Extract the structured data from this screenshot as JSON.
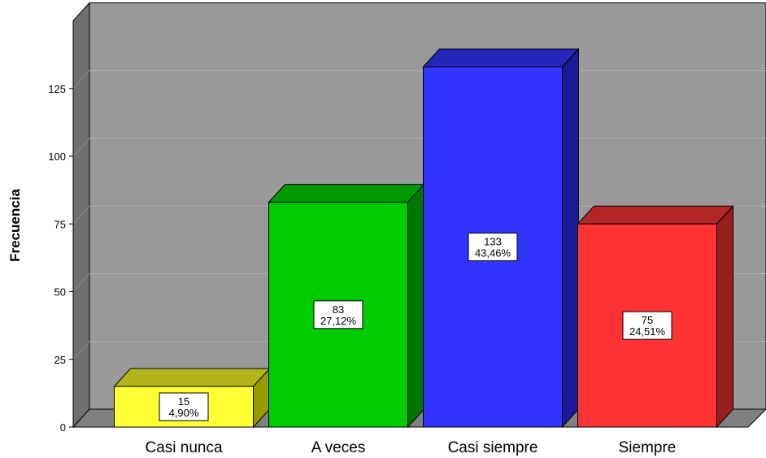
{
  "chart_data": {
    "type": "bar",
    "style": "3d",
    "title": "",
    "xlabel": "",
    "ylabel": "Frecuencia",
    "ylim": [
      0,
      150
    ],
    "yticks": [
      0,
      25,
      50,
      75,
      100,
      125
    ],
    "grid": true,
    "legend": "none",
    "categories": [
      "Casi nunca",
      "A veces",
      "Casi siempre",
      "Siempre"
    ],
    "values": [
      15,
      83,
      133,
      75
    ],
    "percent_labels": [
      "4,90%",
      "27,12%",
      "43,46%",
      "24,51%"
    ],
    "colors": [
      "#ffff33",
      "#00cc00",
      "#3333ff",
      "#ff3333"
    ],
    "side_colors": [
      "#999900",
      "#007700",
      "#1a1a99",
      "#991f1f"
    ],
    "top_colors": [
      "#b3b31a",
      "#009900",
      "#2626bb",
      "#b32626"
    ],
    "wall_color": "#999999",
    "floor_color": "#808080"
  }
}
